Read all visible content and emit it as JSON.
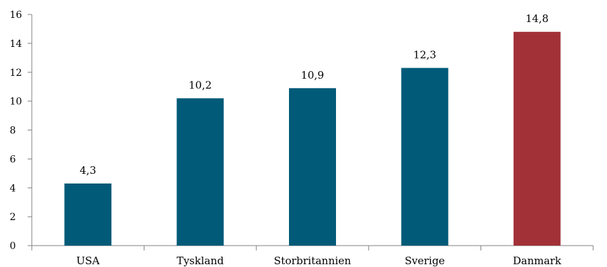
{
  "chart_data": {
    "type": "bar",
    "categories": [
      "USA",
      "Tyskland",
      "Storbritannien",
      "Sverige",
      "Danmark"
    ],
    "values": [
      4.3,
      10.2,
      10.9,
      12.3,
      14.8
    ],
    "data_labels": [
      "4,3",
      "10,2",
      "10,9",
      "12,3",
      "14,8"
    ],
    "bar_colors": [
      "#005a78",
      "#005a78",
      "#005a78",
      "#005a78",
      "#a13137"
    ],
    "ylim": [
      0,
      16
    ],
    "yticks": [
      0,
      2,
      4,
      6,
      8,
      10,
      12,
      14,
      16
    ],
    "ytick_labels": [
      "0",
      "2",
      "4",
      "6",
      "8",
      "10",
      "12",
      "14",
      "16"
    ],
    "title": "",
    "xlabel": "",
    "ylabel": "",
    "grid": false,
    "legend": "none"
  }
}
